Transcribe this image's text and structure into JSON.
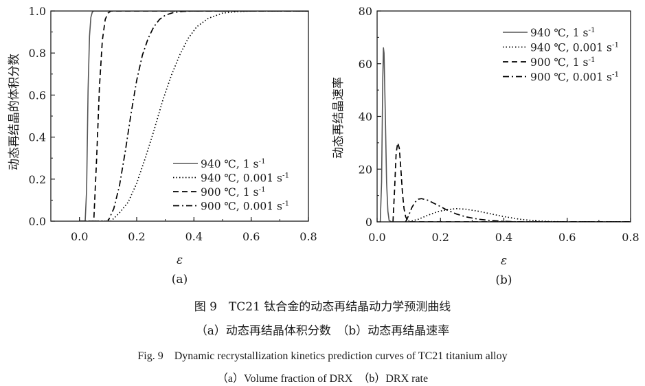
{
  "figure": {
    "caption_cn": "图 9　TC21 钛合金的动态再结晶动力学预测曲线",
    "caption_cn_sub": "（a）动态再结晶体积分数　（b）动态再结晶速率",
    "caption_en": "Fig. 9　Dynamic recrystallization kinetics prediction curves of TC21 titanium alloy",
    "caption_en_sub": "（a）Volume fraction of DRX　（b）DRX rate"
  },
  "chart_data": [
    {
      "type": "line",
      "panel_label": "(a)",
      "xlabel": "ε",
      "ylabel": "动态再结晶的体积分数",
      "xlim": [
        -0.1,
        0.8
      ],
      "ylim": [
        0,
        1
      ],
      "xticks": [
        "0.0",
        "0.2",
        "0.4",
        "0.6",
        "0.8"
      ],
      "yticks": [
        "0.0",
        "0.2",
        "0.4",
        "0.6",
        "0.8",
        "1.0"
      ],
      "legend_position": "bottom-right",
      "series": [
        {
          "name": "940 ℃, 1 s",
          "sup": "-1",
          "style": "solid",
          "color": "#555555",
          "x": [
            0.0,
            0.02,
            0.025,
            0.03,
            0.035,
            0.04,
            0.045,
            0.05,
            0.8
          ],
          "y": [
            0.0,
            0.0,
            0.15,
            0.62,
            0.88,
            0.97,
            0.995,
            1.0,
            1.0
          ]
        },
        {
          "name": "940 ℃, 0.001 s",
          "sup": "-1",
          "style": "dotted",
          "color": "#000000",
          "x": [
            0.0,
            0.11,
            0.14,
            0.17,
            0.2,
            0.23,
            0.26,
            0.29,
            0.32,
            0.35,
            0.38,
            0.41,
            0.45,
            0.5,
            0.55,
            0.6,
            0.65,
            0.8
          ],
          "y": [
            0.0,
            0.0,
            0.04,
            0.09,
            0.18,
            0.3,
            0.43,
            0.57,
            0.69,
            0.79,
            0.87,
            0.925,
            0.965,
            0.99,
            0.997,
            1.0,
            1.0,
            1.0
          ]
        },
        {
          "name": "900 ℃, 1 s",
          "sup": "-1",
          "style": "dashed",
          "color": "#000000",
          "x": [
            0.0,
            0.05,
            0.06,
            0.07,
            0.08,
            0.09,
            0.1,
            0.11,
            0.8
          ],
          "y": [
            0.0,
            0.0,
            0.3,
            0.64,
            0.86,
            0.96,
            0.99,
            1.0,
            1.0
          ]
        },
        {
          "name": "900 ℃, 0.001 s",
          "sup": "-1",
          "style": "dashdot",
          "color": "#000000",
          "x": [
            0.0,
            0.1,
            0.12,
            0.14,
            0.16,
            0.18,
            0.2,
            0.22,
            0.24,
            0.26,
            0.28,
            0.3,
            0.33,
            0.36,
            0.4,
            0.45,
            0.8
          ],
          "y": [
            0.0,
            0.0,
            0.06,
            0.17,
            0.33,
            0.51,
            0.67,
            0.79,
            0.87,
            0.925,
            0.96,
            0.98,
            0.993,
            0.998,
            1.0,
            1.0,
            1.0
          ]
        }
      ]
    },
    {
      "type": "line",
      "panel_label": "(b)",
      "xlabel": "ε",
      "ylabel": "动态再结晶速率",
      "xlim": [
        0,
        0.8
      ],
      "ylim": [
        0,
        80
      ],
      "xticks": [
        "0.0",
        "0.2",
        "0.4",
        "0.6",
        "0.8"
      ],
      "yticks": [
        "0",
        "20",
        "40",
        "60",
        "80"
      ],
      "legend_position": "top-right",
      "series": [
        {
          "name": "940 ℃, 1 s",
          "sup": "-1",
          "style": "solid",
          "color": "#555555",
          "x": [
            0.01,
            0.014,
            0.018,
            0.02,
            0.022,
            0.026,
            0.03,
            0.034,
            0.038,
            0.045,
            0.055,
            0.8
          ],
          "y": [
            0,
            15,
            55,
            66,
            64,
            40,
            15,
            4,
            0.5,
            0,
            0,
            0
          ]
        },
        {
          "name": "940 ℃, 0.001 s",
          "sup": "-1",
          "style": "dotted",
          "color": "#000000",
          "x": [
            0.1,
            0.13,
            0.16,
            0.19,
            0.22,
            0.25,
            0.28,
            0.32,
            0.36,
            0.4,
            0.45,
            0.5,
            0.55,
            0.6,
            0.8
          ],
          "y": [
            0,
            1.0,
            2.5,
            3.8,
            4.6,
            5.0,
            4.8,
            4.0,
            3.0,
            2.0,
            1.0,
            0.4,
            0.1,
            0,
            0
          ]
        },
        {
          "name": "900 ℃, 1 s",
          "sup": "-1",
          "style": "dashed",
          "color": "#000000",
          "x": [
            0.05,
            0.055,
            0.06,
            0.065,
            0.07,
            0.075,
            0.08,
            0.085,
            0.09,
            0.095,
            0.1,
            0.105,
            0.8
          ],
          "y": [
            0,
            12,
            26,
            30,
            28,
            20,
            11,
            5,
            2,
            0.7,
            0.2,
            0,
            0
          ]
        },
        {
          "name": "900 ℃, 0.001 s",
          "sup": "-1",
          "style": "dashdot",
          "color": "#000000",
          "x": [
            0.09,
            0.1,
            0.11,
            0.12,
            0.13,
            0.14,
            0.16,
            0.18,
            0.2,
            0.22,
            0.25,
            0.28,
            0.32,
            0.36,
            0.4,
            0.45,
            0.8
          ],
          "y": [
            0,
            2.5,
            5.5,
            7.5,
            8.6,
            8.8,
            8.2,
            7.0,
            5.8,
            4.5,
            3.0,
            1.9,
            1.0,
            0.5,
            0.2,
            0,
            0
          ]
        }
      ]
    }
  ]
}
